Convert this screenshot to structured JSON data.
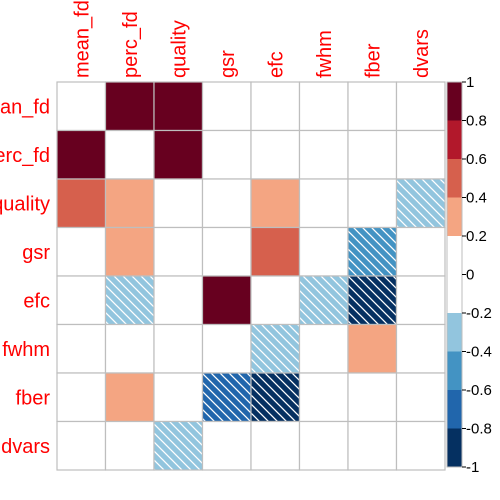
{
  "chart_data": {
    "type": "heatmap",
    "title": "",
    "row_labels": [
      "mean_fd",
      "perc_fd",
      "quality",
      "gsr",
      "efc",
      "fwhm",
      "fber",
      "dvars"
    ],
    "col_labels": [
      "mean_fd",
      "perc_fd",
      "quality",
      "gsr",
      "efc",
      "fwhm",
      "fber",
      "dvars"
    ],
    "values": [
      [
        0,
        1.0,
        0.9,
        0,
        0,
        0,
        0,
        0
      ],
      [
        1.0,
        0,
        0.9,
        0,
        0,
        0,
        0,
        0
      ],
      [
        0.5,
        0.3,
        0,
        0,
        0.3,
        0,
        0,
        -0.3
      ],
      [
        0,
        0.3,
        0,
        0,
        0.5,
        0,
        -0.5,
        0
      ],
      [
        0,
        -0.3,
        0,
        0.9,
        0,
        -0.3,
        -1.0,
        0
      ],
      [
        0,
        0,
        0,
        0,
        -0.3,
        0,
        0.3,
        0
      ],
      [
        0,
        0.3,
        0,
        -0.7,
        -1.0,
        0,
        0,
        0
      ],
      [
        0,
        0,
        -0.3,
        0,
        0,
        0,
        0,
        0
      ]
    ],
    "negative_hatched": true,
    "colorbar": {
      "range": [
        -1,
        1
      ],
      "ticks": [
        "-1",
        "-0.8",
        "-0.6",
        "-0.4",
        "-0.2",
        "0",
        "0.2",
        "0.4",
        "0.6",
        "0.8",
        "1"
      ],
      "bins": [
        {
          "from": -1.0,
          "to": -0.8,
          "color": "#053061"
        },
        {
          "from": -0.8,
          "to": -0.6,
          "color": "#2166ac"
        },
        {
          "from": -0.6,
          "to": -0.4,
          "color": "#4393c3"
        },
        {
          "from": -0.4,
          "to": -0.2,
          "color": "#92c5de"
        },
        {
          "from": -0.2,
          "to": 0.2,
          "color": "#ffffff"
        },
        {
          "from": 0.2,
          "to": 0.4,
          "color": "#f4a582"
        },
        {
          "from": 0.4,
          "to": 0.6,
          "color": "#d6604d"
        },
        {
          "from": 0.6,
          "to": 0.8,
          "color": "#b2182b"
        },
        {
          "from": 0.8,
          "to": 1.0,
          "color": "#67001f"
        }
      ]
    },
    "colors": {
      "label": "#ff0000",
      "grid": "#bebebe"
    }
  }
}
